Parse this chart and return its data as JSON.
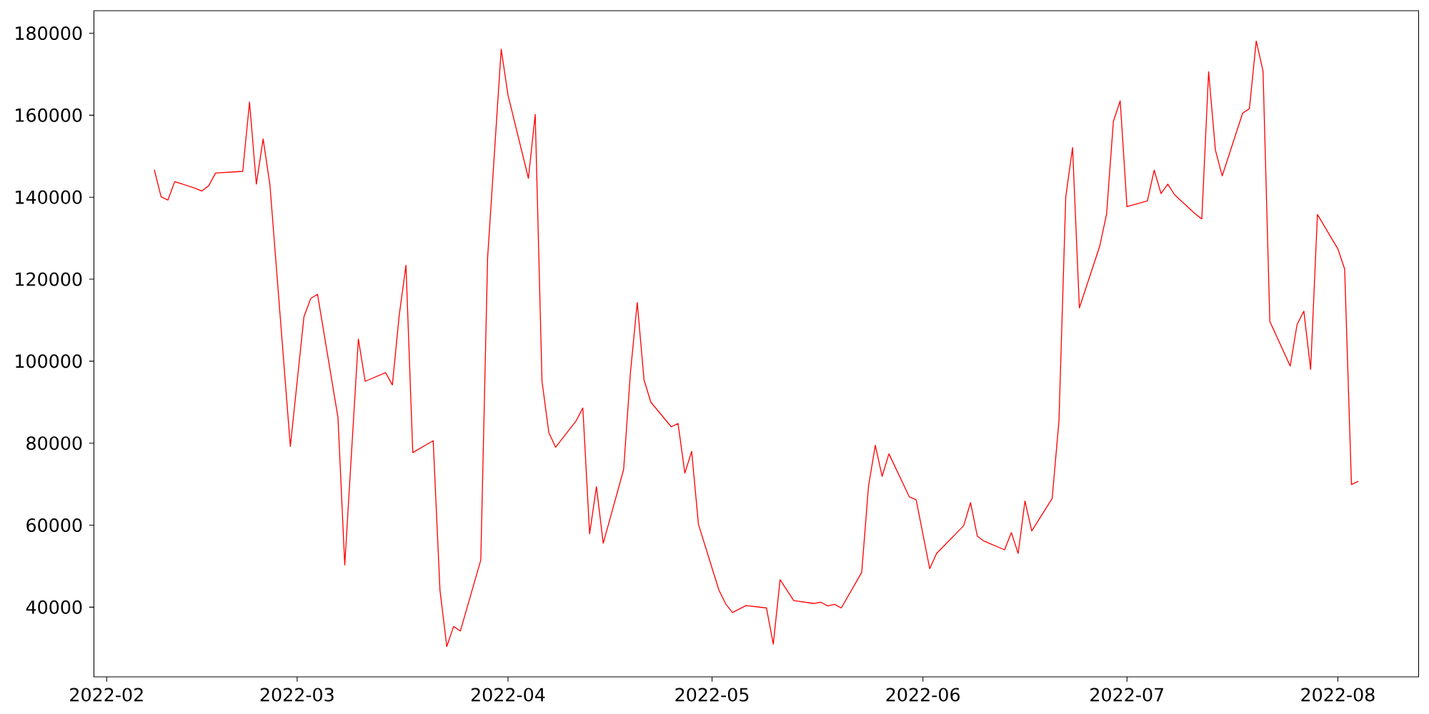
{
  "chart_data": {
    "type": "line",
    "color": "#ff0000",
    "x": [
      "2022-02-08",
      "2022-02-09",
      "2022-02-10",
      "2022-02-11",
      "2022-02-14",
      "2022-02-15",
      "2022-02-16",
      "2022-02-17",
      "2022-02-21",
      "2022-02-22",
      "2022-02-23",
      "2022-02-24",
      "2022-02-25",
      "2022-02-28",
      "2022-03-02",
      "2022-03-03",
      "2022-03-04",
      "2022-03-07",
      "2022-03-08",
      "2022-03-10",
      "2022-03-11",
      "2022-03-14",
      "2022-03-15",
      "2022-03-16",
      "2022-03-17",
      "2022-03-18",
      "2022-03-21",
      "2022-03-22",
      "2022-03-23",
      "2022-03-24",
      "2022-03-25",
      "2022-03-28",
      "2022-03-29",
      "2022-03-31",
      "2022-04-01",
      "2022-04-04",
      "2022-04-05",
      "2022-04-06",
      "2022-04-07",
      "2022-04-08",
      "2022-04-11",
      "2022-04-12",
      "2022-04-13",
      "2022-04-14",
      "2022-04-15",
      "2022-04-18",
      "2022-04-19",
      "2022-04-20",
      "2022-04-21",
      "2022-04-22",
      "2022-04-25",
      "2022-04-26",
      "2022-04-27",
      "2022-04-28",
      "2022-04-29",
      "2022-05-02",
      "2022-05-03",
      "2022-05-04",
      "2022-05-06",
      "2022-05-09",
      "2022-05-10",
      "2022-05-11",
      "2022-05-13",
      "2022-05-16",
      "2022-05-17",
      "2022-05-18",
      "2022-05-19",
      "2022-05-20",
      "2022-05-23",
      "2022-05-24",
      "2022-05-25",
      "2022-05-26",
      "2022-05-27",
      "2022-05-30",
      "2022-05-31",
      "2022-06-02",
      "2022-06-03",
      "2022-06-07",
      "2022-06-08",
      "2022-06-09",
      "2022-06-10",
      "2022-06-13",
      "2022-06-14",
      "2022-06-15",
      "2022-06-16",
      "2022-06-17",
      "2022-06-20",
      "2022-06-21",
      "2022-06-22",
      "2022-06-23",
      "2022-06-24",
      "2022-06-27",
      "2022-06-28",
      "2022-06-29",
      "2022-06-30",
      "2022-07-01",
      "2022-07-04",
      "2022-07-05",
      "2022-07-06",
      "2022-07-07",
      "2022-07-08",
      "2022-07-11",
      "2022-07-12",
      "2022-07-13",
      "2022-07-14",
      "2022-07-15",
      "2022-07-18",
      "2022-07-19",
      "2022-07-20",
      "2022-07-21",
      "2022-07-22",
      "2022-07-25",
      "2022-07-26",
      "2022-07-27",
      "2022-07-28",
      "2022-07-29",
      "2022-08-01",
      "2022-08-02",
      "2022-08-03",
      "2022-08-04"
    ],
    "values": [
      146700,
      140100,
      139300,
      143800,
      142200,
      141500,
      142800,
      145900,
      146300,
      163200,
      143200,
      154200,
      143000,
      79200,
      110800,
      115300,
      116300,
      86300,
      50300,
      105400,
      95100,
      97200,
      94200,
      111100,
      123400,
      77700,
      80600,
      44100,
      30400,
      35300,
      34200,
      51500,
      125200,
      176100,
      164900,
      144600,
      160200,
      95100,
      82600,
      79000,
      85400,
      88600,
      57900,
      69400,
      55600,
      73600,
      97200,
      114300,
      95400,
      90000,
      84000,
      84800,
      72700,
      78000,
      60200,
      44200,
      40800,
      38700,
      40400,
      39800,
      31000,
      46700,
      41600,
      40900,
      41200,
      40300,
      40700,
      39800,
      48500,
      69500,
      79500,
      71900,
      77400,
      66900,
      66200,
      49400,
      53100,
      59900,
      65500,
      57300,
      56100,
      54000,
      58200,
      53100,
      65900,
      58600,
      66500,
      85500,
      140100,
      152100,
      113000,
      128100,
      135900,
      158500,
      163500,
      137700,
      139100,
      146600,
      140900,
      143200,
      140600,
      136000,
      134700,
      170600,
      151500,
      145200,
      160500,
      161600,
      178100,
      170800,
      109700,
      98800,
      108900,
      112200,
      98000,
      135800,
      127400,
      122500,
      69900,
      70700
    ],
    "xlim": [
      "2022-01-30T03:00",
      "2022-08-12T21:00"
    ],
    "ylim": [
      23000,
      185500
    ],
    "xticks": [
      {
        "value": "2022-02-01",
        "label": "2022-02"
      },
      {
        "value": "2022-03-01",
        "label": "2022-03"
      },
      {
        "value": "2022-04-01",
        "label": "2022-04"
      },
      {
        "value": "2022-05-01",
        "label": "2022-05"
      },
      {
        "value": "2022-06-01",
        "label": "2022-06"
      },
      {
        "value": "2022-07-01",
        "label": "2022-07"
      },
      {
        "value": "2022-08-01",
        "label": "2022-08"
      }
    ],
    "yticks": [
      40000,
      60000,
      80000,
      100000,
      120000,
      140000,
      160000,
      180000
    ]
  }
}
